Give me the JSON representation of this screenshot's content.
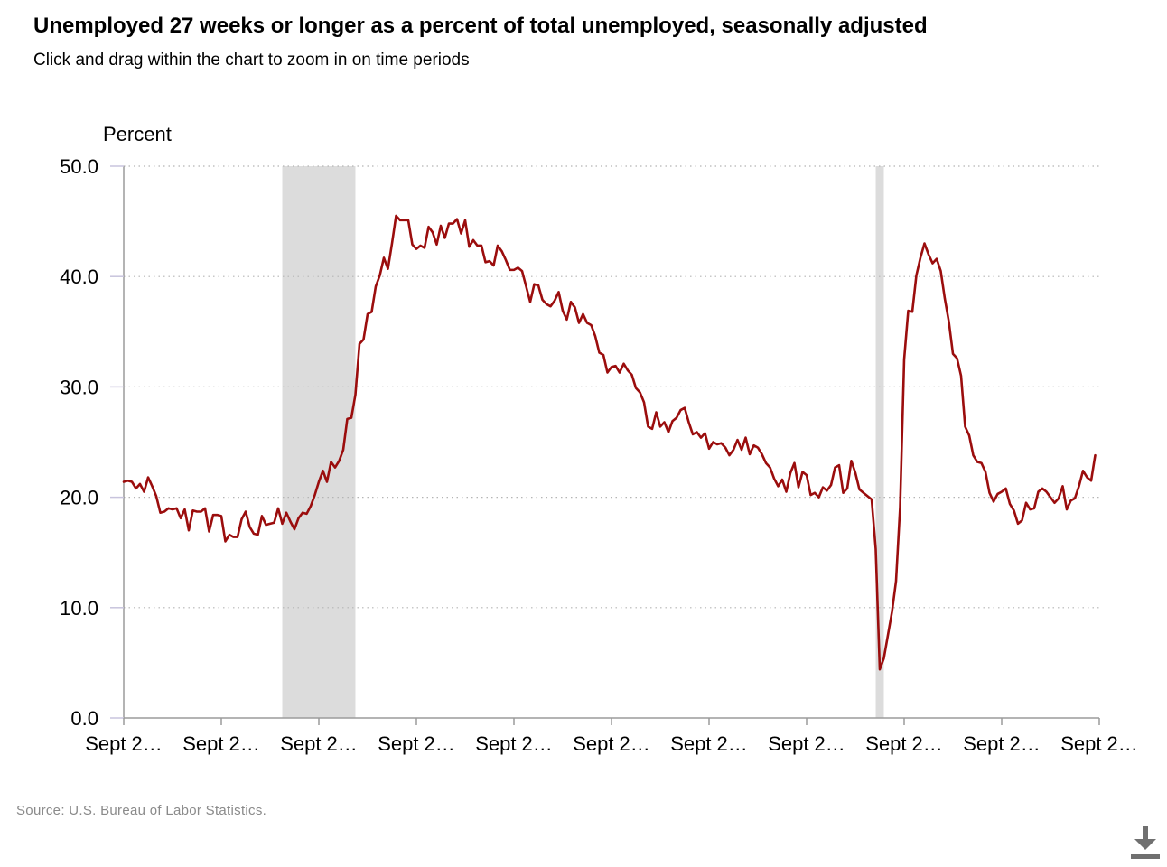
{
  "header": {
    "title": "Unemployed 27 weeks or longer as a percent of total unemployed, seasonally adjusted",
    "subtitle": "Click and drag within the chart to zoom in on time periods"
  },
  "footer": {
    "source": "Source: U.S. Bureau of Labor Statistics.",
    "download_icon": "download-icon"
  },
  "colors": {
    "line": "#9b0d0d",
    "recession": "#dcdcdc",
    "grid": "#b5b5b5",
    "axis": "#9b9b9b",
    "source_text": "#8a8a8a",
    "icon": "#707070"
  },
  "chart_data": {
    "type": "line",
    "title": "Unemployed 27 weeks or longer as a percent of total unemployed, seasonally adjusted",
    "ylabel": "Percent",
    "xlabel": "",
    "ylim": [
      0,
      50
    ],
    "xlim": [
      "2004-09",
      "2024-09"
    ],
    "yticks": [
      "0.0",
      "10.0",
      "20.0",
      "30.0",
      "40.0",
      "50.0"
    ],
    "xticks": [
      "Sept 2…",
      "Sept 2…",
      "Sept 2…",
      "Sept 2…",
      "Sept 2…",
      "Sept 2…",
      "Sept 2…",
      "Sept 2…",
      "Sept 2…",
      "Sept 2…",
      "Sept 2…"
    ],
    "grid": true,
    "legend": "none",
    "recession_bands": [
      {
        "start": "2007-12",
        "end": "2009-06"
      },
      {
        "start": "2020-02",
        "end": "2020-04"
      }
    ],
    "series": [
      {
        "points": [
          [
            "2004-09",
            21.4
          ],
          [
            "2004-10",
            21.5
          ],
          [
            "2004-11",
            21.4
          ],
          [
            "2004-12",
            20.8
          ],
          [
            "2005-01",
            21.2
          ],
          [
            "2005-02",
            20.5
          ],
          [
            "2005-03",
            21.8
          ],
          [
            "2005-04",
            21.0
          ],
          [
            "2005-05",
            20.1
          ],
          [
            "2005-06",
            18.6
          ],
          [
            "2005-07",
            18.7
          ],
          [
            "2005-08",
            19.0
          ],
          [
            "2005-09",
            18.9
          ],
          [
            "2005-10",
            19.0
          ],
          [
            "2005-11",
            18.1
          ],
          [
            "2005-12",
            18.9
          ],
          [
            "2006-01",
            17.0
          ],
          [
            "2006-02",
            18.8
          ],
          [
            "2006-03",
            18.7
          ],
          [
            "2006-04",
            18.7
          ],
          [
            "2006-05",
            19.0
          ],
          [
            "2006-06",
            16.9
          ],
          [
            "2006-07",
            18.4
          ],
          [
            "2006-08",
            18.4
          ],
          [
            "2006-09",
            18.3
          ],
          [
            "2006-10",
            16.0
          ],
          [
            "2006-11",
            16.6
          ],
          [
            "2006-12",
            16.4
          ],
          [
            "2007-01",
            16.4
          ],
          [
            "2007-02",
            18.0
          ],
          [
            "2007-03",
            18.7
          ],
          [
            "2007-04",
            17.3
          ],
          [
            "2007-05",
            16.7
          ],
          [
            "2007-06",
            16.6
          ],
          [
            "2007-07",
            18.3
          ],
          [
            "2007-08",
            17.5
          ],
          [
            "2007-09",
            17.6
          ],
          [
            "2007-10",
            17.7
          ],
          [
            "2007-11",
            19.0
          ],
          [
            "2007-12",
            17.6
          ],
          [
            "2008-01",
            18.6
          ],
          [
            "2008-02",
            17.8
          ],
          [
            "2008-03",
            17.1
          ],
          [
            "2008-04",
            18.1
          ],
          [
            "2008-05",
            18.6
          ],
          [
            "2008-06",
            18.5
          ],
          [
            "2008-07",
            19.2
          ],
          [
            "2008-08",
            20.2
          ],
          [
            "2008-09",
            21.4
          ],
          [
            "2008-10",
            22.4
          ],
          [
            "2008-11",
            21.4
          ],
          [
            "2008-12",
            23.2
          ],
          [
            "2009-01",
            22.7
          ],
          [
            "2009-02",
            23.3
          ],
          [
            "2009-03",
            24.3
          ],
          [
            "2009-04",
            27.1
          ],
          [
            "2009-05",
            27.2
          ],
          [
            "2009-06",
            29.3
          ],
          [
            "2009-07",
            33.9
          ],
          [
            "2009-08",
            34.3
          ],
          [
            "2009-09",
            36.6
          ],
          [
            "2009-10",
            36.8
          ],
          [
            "2009-11",
            39.1
          ],
          [
            "2009-12",
            40.1
          ],
          [
            "2010-01",
            41.7
          ],
          [
            "2010-02",
            40.7
          ],
          [
            "2010-03",
            43.0
          ],
          [
            "2010-04",
            45.5
          ],
          [
            "2010-05",
            45.1
          ],
          [
            "2010-06",
            45.1
          ],
          [
            "2010-07",
            45.1
          ],
          [
            "2010-08",
            42.9
          ],
          [
            "2010-09",
            42.5
          ],
          [
            "2010-10",
            42.8
          ],
          [
            "2010-11",
            42.6
          ],
          [
            "2010-12",
            44.5
          ],
          [
            "2011-01",
            44.0
          ],
          [
            "2011-02",
            42.9
          ],
          [
            "2011-03",
            44.6
          ],
          [
            "2011-04",
            43.5
          ],
          [
            "2011-05",
            44.8
          ],
          [
            "2011-06",
            44.8
          ],
          [
            "2011-07",
            45.2
          ],
          [
            "2011-08",
            43.9
          ],
          [
            "2011-09",
            45.1
          ],
          [
            "2011-10",
            42.7
          ],
          [
            "2011-11",
            43.3
          ],
          [
            "2011-12",
            42.8
          ],
          [
            "2012-01",
            42.8
          ],
          [
            "2012-02",
            41.3
          ],
          [
            "2012-03",
            41.4
          ],
          [
            "2012-04",
            41.0
          ],
          [
            "2012-05",
            42.8
          ],
          [
            "2012-06",
            42.3
          ],
          [
            "2012-07",
            41.5
          ],
          [
            "2012-08",
            40.6
          ],
          [
            "2012-09",
            40.6
          ],
          [
            "2012-10",
            40.8
          ],
          [
            "2012-11",
            40.5
          ],
          [
            "2012-12",
            39.1
          ],
          [
            "2013-01",
            37.7
          ],
          [
            "2013-02",
            39.3
          ],
          [
            "2013-03",
            39.2
          ],
          [
            "2013-04",
            37.9
          ],
          [
            "2013-05",
            37.5
          ],
          [
            "2013-06",
            37.3
          ],
          [
            "2013-07",
            37.8
          ],
          [
            "2013-08",
            38.6
          ],
          [
            "2013-09",
            36.9
          ],
          [
            "2013-10",
            36.1
          ],
          [
            "2013-11",
            37.7
          ],
          [
            "2013-12",
            37.2
          ],
          [
            "2014-01",
            35.8
          ],
          [
            "2014-02",
            36.6
          ],
          [
            "2014-03",
            35.8
          ],
          [
            "2014-04",
            35.6
          ],
          [
            "2014-05",
            34.6
          ],
          [
            "2014-06",
            33.1
          ],
          [
            "2014-07",
            32.9
          ],
          [
            "2014-08",
            31.3
          ],
          [
            "2014-09",
            31.8
          ],
          [
            "2014-10",
            31.9
          ],
          [
            "2014-11",
            31.3
          ],
          [
            "2014-12",
            32.1
          ],
          [
            "2015-01",
            31.5
          ],
          [
            "2015-02",
            31.1
          ],
          [
            "2015-03",
            29.9
          ],
          [
            "2015-04",
            29.5
          ],
          [
            "2015-05",
            28.6
          ],
          [
            "2015-06",
            26.4
          ],
          [
            "2015-07",
            26.2
          ],
          [
            "2015-08",
            27.7
          ],
          [
            "2015-09",
            26.4
          ],
          [
            "2015-10",
            26.8
          ],
          [
            "2015-11",
            25.9
          ],
          [
            "2015-12",
            26.9
          ],
          [
            "2016-01",
            27.2
          ],
          [
            "2016-02",
            27.9
          ],
          [
            "2016-03",
            28.1
          ],
          [
            "2016-04",
            26.8
          ],
          [
            "2016-05",
            25.7
          ],
          [
            "2016-06",
            25.9
          ],
          [
            "2016-07",
            25.4
          ],
          [
            "2016-08",
            25.8
          ],
          [
            "2016-09",
            24.4
          ],
          [
            "2016-10",
            25.0
          ],
          [
            "2016-11",
            24.8
          ],
          [
            "2016-12",
            24.9
          ],
          [
            "2017-01",
            24.5
          ],
          [
            "2017-02",
            23.8
          ],
          [
            "2017-03",
            24.3
          ],
          [
            "2017-04",
            25.2
          ],
          [
            "2017-05",
            24.3
          ],
          [
            "2017-06",
            25.4
          ],
          [
            "2017-07",
            23.9
          ],
          [
            "2017-08",
            24.7
          ],
          [
            "2017-09",
            24.5
          ],
          [
            "2017-10",
            23.9
          ],
          [
            "2017-11",
            23.1
          ],
          [
            "2017-12",
            22.7
          ],
          [
            "2018-01",
            21.7
          ],
          [
            "2018-02",
            21.0
          ],
          [
            "2018-03",
            21.6
          ],
          [
            "2018-04",
            20.5
          ],
          [
            "2018-05",
            22.2
          ],
          [
            "2018-06",
            23.1
          ],
          [
            "2018-07",
            20.9
          ],
          [
            "2018-08",
            22.3
          ],
          [
            "2018-09",
            22.0
          ],
          [
            "2018-10",
            20.2
          ],
          [
            "2018-11",
            20.4
          ],
          [
            "2018-12",
            20.0
          ],
          [
            "2019-01",
            20.9
          ],
          [
            "2019-02",
            20.6
          ],
          [
            "2019-03",
            21.1
          ],
          [
            "2019-04",
            22.7
          ],
          [
            "2019-05",
            22.9
          ],
          [
            "2019-06",
            20.4
          ],
          [
            "2019-07",
            20.8
          ],
          [
            "2019-08",
            23.3
          ],
          [
            "2019-09",
            22.2
          ],
          [
            "2019-10",
            20.7
          ],
          [
            "2019-11",
            20.4
          ],
          [
            "2019-12",
            20.1
          ],
          [
            "2020-01",
            19.8
          ],
          [
            "2020-02",
            15.3
          ],
          [
            "2020-03",
            4.4
          ],
          [
            "2020-04",
            5.4
          ],
          [
            "2020-05",
            7.5
          ],
          [
            "2020-06",
            9.6
          ],
          [
            "2020-07",
            12.4
          ],
          [
            "2020-08",
            19.1
          ],
          [
            "2020-09",
            32.5
          ],
          [
            "2020-10",
            36.9
          ],
          [
            "2020-11",
            36.8
          ],
          [
            "2020-12",
            40.1
          ],
          [
            "2021-01",
            41.7
          ],
          [
            "2021-02",
            43.0
          ],
          [
            "2021-03",
            42.0
          ],
          [
            "2021-04",
            41.2
          ],
          [
            "2021-05",
            41.6
          ],
          [
            "2021-06",
            40.5
          ],
          [
            "2021-07",
            38.0
          ],
          [
            "2021-08",
            35.9
          ],
          [
            "2021-09",
            33.0
          ],
          [
            "2021-10",
            32.6
          ],
          [
            "2021-11",
            31.0
          ],
          [
            "2021-12",
            26.4
          ],
          [
            "2022-01",
            25.6
          ],
          [
            "2022-02",
            23.8
          ],
          [
            "2022-03",
            23.2
          ],
          [
            "2022-04",
            23.1
          ],
          [
            "2022-05",
            22.3
          ],
          [
            "2022-06",
            20.4
          ],
          [
            "2022-07",
            19.6
          ],
          [
            "2022-08",
            20.3
          ],
          [
            "2022-09",
            20.5
          ],
          [
            "2022-10",
            20.8
          ],
          [
            "2022-11",
            19.4
          ],
          [
            "2022-12",
            18.8
          ],
          [
            "2023-01",
            17.6
          ],
          [
            "2023-02",
            17.9
          ],
          [
            "2023-03",
            19.5
          ],
          [
            "2023-04",
            18.9
          ],
          [
            "2023-05",
            19.0
          ],
          [
            "2023-06",
            20.5
          ],
          [
            "2023-07",
            20.8
          ],
          [
            "2023-08",
            20.5
          ],
          [
            "2023-09",
            20.0
          ],
          [
            "2023-10",
            19.5
          ],
          [
            "2023-11",
            19.9
          ],
          [
            "2023-12",
            21.0
          ],
          [
            "2024-01",
            18.9
          ],
          [
            "2024-02",
            19.7
          ],
          [
            "2024-03",
            19.9
          ],
          [
            "2024-04",
            21.0
          ],
          [
            "2024-05",
            22.4
          ],
          [
            "2024-06",
            21.8
          ],
          [
            "2024-07",
            21.5
          ],
          [
            "2024-08",
            23.8
          ]
        ]
      }
    ]
  }
}
